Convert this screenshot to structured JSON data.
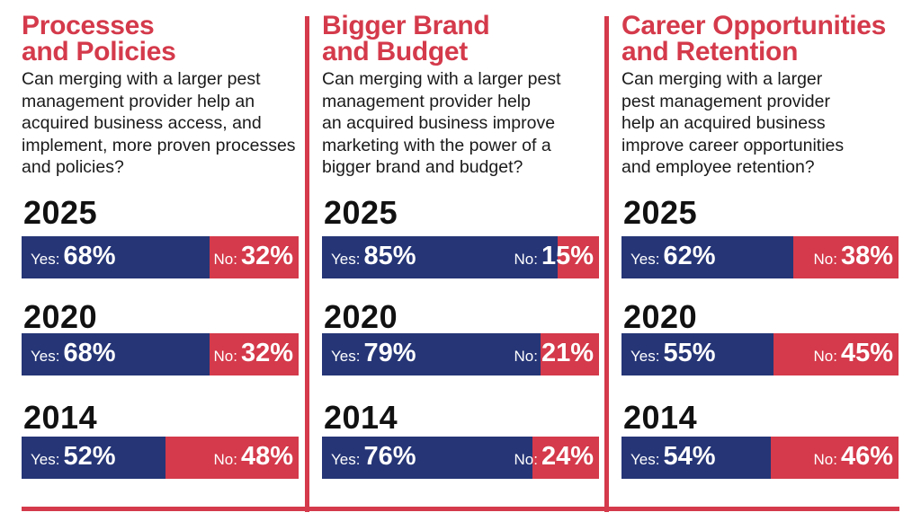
{
  "chart_data": {
    "type": "bar",
    "subtype": "stacked-horizontal-100",
    "legend": [
      "Yes",
      "No"
    ],
    "colors": {
      "yes": "#253576",
      "no": "#d43a4b",
      "title": "#d43a4b"
    },
    "panels": [
      {
        "title_lines": [
          "Processes",
          "and Policies"
        ],
        "question_lines": [
          "Can merging with a larger pest",
          "management provider help an",
          "acquired business access, and",
          "implement, more proven processes",
          "and policies?"
        ],
        "rows": [
          {
            "year": "2025",
            "yes": 68,
            "no": 32,
            "yes_label": "Yes:",
            "no_label": "No:",
            "yes_text": "68%",
            "no_text": "32%"
          },
          {
            "year": "2020",
            "yes": 68,
            "no": 32,
            "yes_label": "Yes:",
            "no_label": "No:",
            "yes_text": "68%",
            "no_text": "32%"
          },
          {
            "year": "2014",
            "yes": 52,
            "no": 48,
            "yes_label": "Yes:",
            "no_label": "No:",
            "yes_text": "52%",
            "no_text": "48%"
          }
        ]
      },
      {
        "title_lines": [
          "Bigger Brand",
          "and Budget"
        ],
        "question_lines": [
          "Can merging with a larger pest",
          "management provider help",
          "an acquired business improve",
          "marketing with the power of a",
          "bigger brand and budget?"
        ],
        "rows": [
          {
            "year": "2025",
            "yes": 85,
            "no": 15,
            "yes_label": "Yes:",
            "no_label": "No:",
            "yes_text": "85%",
            "no_text": "15%"
          },
          {
            "year": "2020",
            "yes": 79,
            "no": 21,
            "yes_label": "Yes:",
            "no_label": "No:",
            "yes_text": "79%",
            "no_text": "21%"
          },
          {
            "year": "2014",
            "yes": 76,
            "no": 24,
            "yes_label": "Yes:",
            "no_label": "No:",
            "yes_text": "76%",
            "no_text": "24%"
          }
        ]
      },
      {
        "title_lines": [
          "Career Opportunities",
          "and Retention"
        ],
        "question_lines": [
          "Can merging with a larger",
          "pest management provider",
          "help an acquired business",
          "improve career opportunities",
          "and employee retention?"
        ],
        "rows": [
          {
            "year": "2025",
            "yes": 62,
            "no": 38,
            "yes_label": "Yes:",
            "no_label": "No:",
            "yes_text": "62%",
            "no_text": "38%"
          },
          {
            "year": "2020",
            "yes": 55,
            "no": 45,
            "yes_label": "Yes:",
            "no_label": "No:",
            "yes_text": "55%",
            "no_text": "45%"
          },
          {
            "year": "2014",
            "yes": 54,
            "no": 46,
            "yes_label": "Yes:",
            "no_label": "No:",
            "yes_text": "54%",
            "no_text": "46%"
          }
        ]
      }
    ]
  }
}
